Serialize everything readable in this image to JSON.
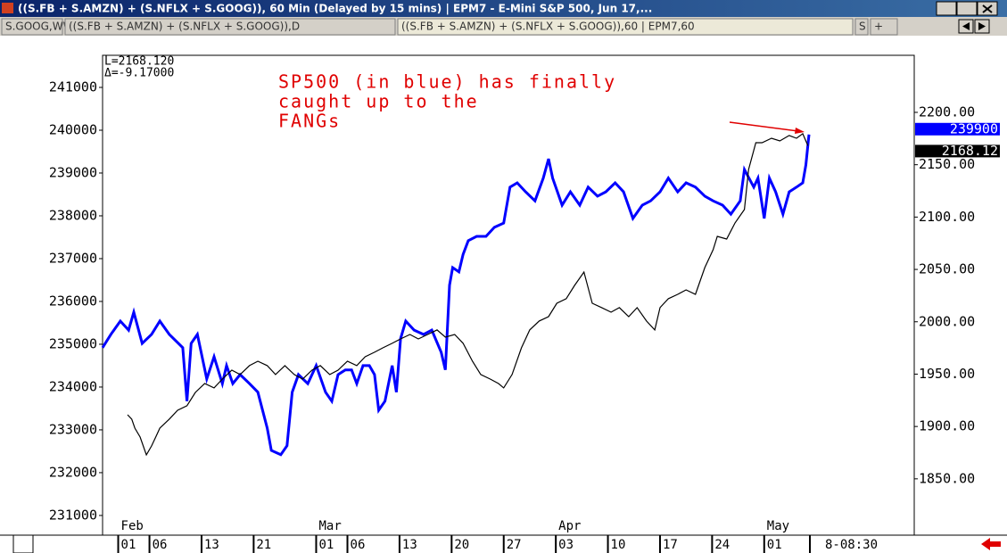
{
  "window": {
    "title": "((S.FB + S.AMZN) + (S.NFLX + S.GOOG)), 60 Min (Delayed by 15 mins)  |  EPM7 - E-Mini S&P 500, Jun 17,...",
    "tabs": [
      "S.GOOG,WW",
      "((S.FB + S.AMZN) + (S.NFLX + S.GOOG)),D",
      "((S.FB + S.AMZN) + (S.NFLX + S.GOOG)),60  |  EPM7,60",
      "S",
      "+"
    ],
    "time_label": "8-08:30"
  },
  "chart_data": {
    "type": "line",
    "info": [
      "L=2168.120",
      "Δ=-9.17000"
    ],
    "annotation": [
      "SP500 (in blue) has finally",
      "caught up to the",
      "FANGs"
    ],
    "xlim": [
      -1.5,
      76.4
    ],
    "xticks": [
      {
        "value": 0,
        "label": "01"
      },
      {
        "value": 3,
        "label": "06"
      },
      {
        "value": 8,
        "label": "13"
      },
      {
        "value": 13,
        "label": "21"
      },
      {
        "value": 19,
        "label": "01"
      },
      {
        "value": 22,
        "label": "06"
      },
      {
        "value": 27,
        "label": "13"
      },
      {
        "value": 32,
        "label": "20"
      },
      {
        "value": 37,
        "label": "27"
      },
      {
        "value": 42,
        "label": "03"
      },
      {
        "value": 47,
        "label": "10"
      },
      {
        "value": 52,
        "label": "17"
      },
      {
        "value": 57,
        "label": "24"
      },
      {
        "value": 62,
        "label": "01"
      }
    ],
    "month_ticks": [
      {
        "value": 0,
        "label": "Feb"
      },
      {
        "value": 19,
        "label": "Mar"
      },
      {
        "value": 42,
        "label": "Apr"
      },
      {
        "value": 62,
        "label": "May"
      }
    ],
    "ylim": [
      230540,
      241750
    ],
    "yticks": [
      231000,
      232000,
      233000,
      234000,
      235000,
      236000,
      237000,
      238000,
      239000,
      240000,
      241000
    ],
    "y2lim": [
      1796.2,
      2254.5
    ],
    "y2ticks": [
      {
        "value": 1850,
        "label": "1850.00"
      },
      {
        "value": 1900,
        "label": "1900.00"
      },
      {
        "value": 1950,
        "label": "1950.00"
      },
      {
        "value": 2000,
        "label": "2000.00"
      },
      {
        "value": 2050,
        "label": "2050.00"
      },
      {
        "value": 2100,
        "label": "2100.00"
      },
      {
        "value": 2150,
        "label": "2150.00"
      },
      {
        "value": 2200,
        "label": "2200.00"
      }
    ],
    "series": [
      {
        "color": "#0000ff",
        "axis": "y",
        "last_label": "239900",
        "x": [
          -1.5,
          -0.7,
          0.2,
          1.0,
          1.5,
          2.3,
          3.2,
          4.0,
          4.9,
          6.2,
          6.6,
          7.0,
          7.6,
          8.5,
          9.2,
          10.0,
          10.4,
          11.0,
          11.7,
          12.6,
          13.4,
          14.3,
          14.7,
          15.6,
          16.2,
          16.7,
          17.3,
          18.2,
          19.0,
          19.9,
          20.5,
          21.1,
          21.8,
          22.4,
          22.9,
          23.5,
          24.1,
          24.6,
          25.0,
          25.6,
          26.3,
          26.7,
          27.1,
          27.6,
          28.4,
          29.3,
          30.1,
          31.0,
          31.4,
          31.8,
          32.1,
          32.7,
          33.1,
          33.6,
          34.4,
          35.3,
          36.1,
          37.0,
          37.6,
          38.3,
          39.1,
          40.0,
          40.8,
          41.3,
          41.7,
          42.6,
          43.4,
          44.3,
          45.1,
          46.0,
          46.8,
          47.7,
          48.5,
          49.4,
          50.3,
          51.1,
          52.0,
          52.8,
          53.7,
          54.5,
          55.4,
          56.3,
          57.1,
          58.0,
          58.8,
          59.7,
          60.1,
          61.0,
          61.4,
          62.0,
          62.5,
          63.1,
          63.8,
          64.4,
          65.1,
          65.7,
          66.0,
          66.3
        ],
        "values": [
          234920,
          235230,
          235540,
          235330,
          235750,
          235020,
          235230,
          235540,
          235230,
          234920,
          233670,
          235020,
          235230,
          234190,
          234710,
          234080,
          234500,
          234080,
          234290,
          234080,
          233880,
          233040,
          232520,
          232420,
          232630,
          233880,
          234290,
          234080,
          234500,
          233880,
          233670,
          234290,
          234400,
          234400,
          234080,
          234500,
          234500,
          234290,
          233460,
          233670,
          234500,
          233880,
          235130,
          235540,
          235330,
          235230,
          235330,
          234810,
          234400,
          236380,
          236790,
          236690,
          237100,
          237420,
          237520,
          237520,
          237730,
          237830,
          238670,
          238770,
          238560,
          238350,
          238880,
          239330,
          238880,
          238250,
          238560,
          238250,
          238670,
          238460,
          238560,
          238770,
          238560,
          237940,
          238250,
          238350,
          238560,
          238880,
          238560,
          238770,
          238670,
          238460,
          238350,
          238250,
          238040,
          238350,
          239080,
          238670,
          238880,
          237940,
          238880,
          238560,
          238040,
          238560,
          238670,
          238770,
          239190,
          239900
        ]
      },
      {
        "color": "#000000",
        "axis": "y2",
        "last_label": "2168.12",
        "x": [
          0.9,
          1.3,
          1.6,
          2.1,
          2.7,
          3.2,
          3.6,
          4.0,
          4.9,
          5.7,
          6.6,
          7.4,
          8.3,
          9.2,
          10.0,
          10.9,
          11.7,
          12.6,
          13.4,
          14.3,
          15.1,
          16.0,
          16.9,
          17.7,
          18.6,
          19.4,
          20.3,
          21.1,
          22.0,
          22.9,
          23.7,
          24.6,
          25.4,
          26.3,
          27.1,
          28.0,
          28.8,
          29.7,
          30.6,
          31.4,
          32.3,
          33.1,
          34.0,
          34.8,
          35.7,
          36.5,
          37.0,
          37.8,
          38.7,
          39.5,
          40.4,
          41.3,
          42.1,
          43.0,
          43.8,
          44.7,
          45.5,
          46.4,
          47.3,
          48.1,
          49.0,
          49.8,
          50.7,
          51.5,
          52.0,
          52.8,
          53.7,
          54.5,
          55.4,
          56.3,
          57.1,
          57.5,
          58.4,
          59.2,
          60.1,
          60.5,
          61.2,
          61.8,
          62.7,
          63.5,
          64.4,
          65.1,
          65.7,
          66.2
        ],
        "values": [
          1911.2,
          1907,
          1898.4,
          1889.9,
          1872.9,
          1881.4,
          1889.9,
          1898.4,
          1907,
          1915.5,
          1919.8,
          1932.5,
          1941,
          1936.8,
          1945.3,
          1953.8,
          1949.6,
          1958.1,
          1962.3,
          1958.1,
          1949.6,
          1958.1,
          1949.6,
          1945.3,
          1953.8,
          1958.1,
          1949.6,
          1953.8,
          1962.3,
          1958.1,
          1966.6,
          1970.9,
          1975.1,
          1979.4,
          1983.6,
          1987.9,
          1983.6,
          1987.9,
          1992.2,
          1985.3,
          1987.9,
          1979.4,
          1962.3,
          1949.6,
          1945.3,
          1941,
          1936.8,
          1949.6,
          1975.1,
          1992.2,
          2000.7,
          2004.9,
          2017.7,
          2022,
          2034.7,
          2047.5,
          2017.7,
          2013.5,
          2009.2,
          2013.5,
          2004.9,
          2013.5,
          2000.7,
          1992.2,
          2013.5,
          2022,
          2026.2,
          2030.5,
          2026.2,
          2051.8,
          2068.8,
          2081.6,
          2079,
          2094.4,
          2107.2,
          2145.5,
          2171,
          2171,
          2175.3,
          2172.7,
          2177.9,
          2175.3,
          2179.6,
          2168.12
        ]
      }
    ]
  }
}
